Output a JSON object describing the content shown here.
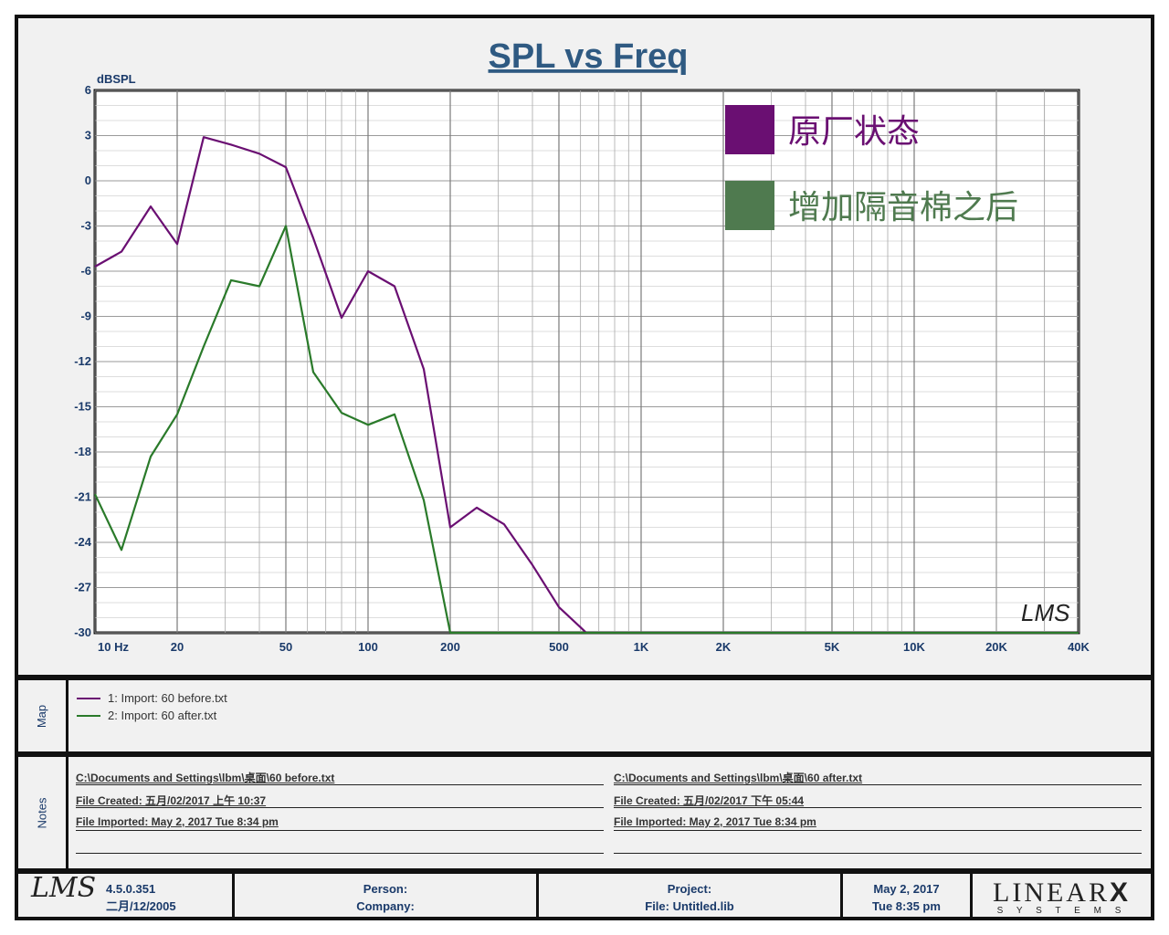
{
  "chart_data": {
    "type": "line",
    "title": "SPL vs Freq",
    "ylabel": "dBSPL",
    "xscale": "log",
    "xlim": [
      10,
      40000
    ],
    "ylim": [
      -30,
      6
    ],
    "x_tick_labels": [
      "10  Hz",
      "20",
      "50",
      "100",
      "200",
      "500",
      "1K",
      "2K",
      "5K",
      "10K",
      "20K",
      "40K"
    ],
    "x_tick_values": [
      10,
      20,
      50,
      100,
      200,
      500,
      1000,
      2000,
      5000,
      10000,
      20000,
      40000
    ],
    "y_tick_labels": [
      "6",
      "3",
      "0",
      "-3",
      "-6",
      "-9",
      "-12",
      "-15",
      "-18",
      "-21",
      "-24",
      "-27",
      "-30"
    ],
    "grid": true,
    "legend_position": "top-right",
    "series": [
      {
        "name": "原厂状态",
        "color": "#6a0f72",
        "x": [
          10,
          12.5,
          16,
          20,
          25,
          31.5,
          40,
          50,
          63,
          80,
          100,
          125,
          160,
          200,
          250,
          315,
          400,
          500,
          630,
          800,
          1000,
          40000
        ],
        "y": [
          -5.7,
          -4.7,
          -1.7,
          -4.2,
          2.9,
          2.4,
          1.8,
          0.9,
          -3.8,
          -9.1,
          -6.0,
          -7.0,
          -12.5,
          -23.0,
          -21.7,
          -22.8,
          -25.5,
          -28.3,
          -30,
          -30,
          -30,
          -30
        ]
      },
      {
        "name": "增加隔音棉之后",
        "color": "#2a7a2a",
        "x": [
          10,
          12.5,
          16,
          20,
          25,
          31.5,
          40,
          50,
          63,
          80,
          100,
          125,
          160,
          200,
          250,
          40000
        ],
        "y": [
          -20.8,
          -24.5,
          -18.3,
          -15.5,
          -11.0,
          -6.6,
          -7.0,
          -3.0,
          -12.7,
          -15.4,
          -16.2,
          -15.5,
          -21.2,
          -30,
          -30,
          -30
        ]
      }
    ],
    "watermark": "LMS"
  },
  "legend": {
    "items": [
      {
        "label": "原厂状态",
        "color": "#6a0f72"
      },
      {
        "label": "增加隔音棉之后",
        "color": "#4f7a4f"
      }
    ]
  },
  "map": {
    "label": "Map",
    "entries": [
      {
        "text": "1: Import: 60 before.txt",
        "color": "#6a0f72"
      },
      {
        "text": "2: Import: 60 after.txt",
        "color": "#2a7a2a"
      }
    ]
  },
  "notes": {
    "label": "Notes",
    "left": {
      "path": "C:\\Documents and Settings\\lbm\\桌面\\60 before.txt",
      "created": "File Created:  五月/02/2017  上午  10:37",
      "imported": "File Imported: May  2, 2017  Tue  8:34 pm"
    },
    "right": {
      "path": "C:\\Documents and Settings\\lbm\\桌面\\60 after.txt",
      "created": "File Created:  五月/02/2017  下午  05:44",
      "imported": "File Imported: May  2, 2017  Tue  8:34 pm"
    }
  },
  "footer": {
    "logo": "LMS",
    "version": "4.5.0.351",
    "version_date": "二月/12/2005",
    "person_label": "Person:",
    "company_label": "Company:",
    "project_label": "Project:",
    "file_label": "File: Untitled.lib",
    "date": "May  2, 2017",
    "time": "Tue   8:35 pm",
    "brand_top": "LINEAR",
    "brand_x": "X",
    "brand_bottom": "S  Y  S  T  E  M  S"
  }
}
